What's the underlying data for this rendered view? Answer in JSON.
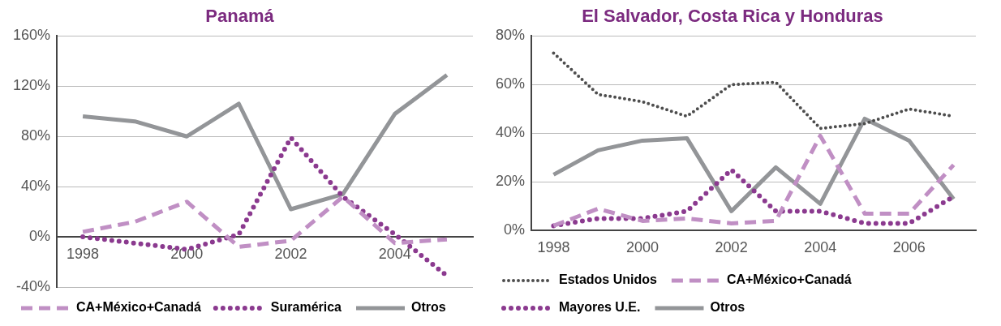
{
  "chart_data": [
    {
      "type": "line",
      "title": "Panamá",
      "categories": [
        "1998",
        null,
        "2000",
        null,
        "2002",
        null,
        "2004",
        null
      ],
      "series": [
        {
          "name": "CA+México+Canadá",
          "color": "#c08fc4",
          "line_style": "dashed",
          "values": [
            4,
            12,
            28,
            -8,
            -3,
            32,
            -5,
            -2
          ]
        },
        {
          "name": "Suramérica",
          "color": "#8b3a8f",
          "line_style": "dotted",
          "values": [
            0,
            -5,
            -10,
            2,
            79,
            32,
            2,
            -31
          ]
        },
        {
          "name": "Otros",
          "color": "#939598",
          "line_style": "solid",
          "values": [
            96,
            92,
            80,
            106,
            22,
            34,
            98,
            129
          ]
        }
      ],
      "ylim": [
        -40,
        160
      ],
      "yticks": [
        {
          "value": -40,
          "label": "-40%"
        },
        {
          "value": 0,
          "label": "0%"
        },
        {
          "value": 40,
          "label": "40%"
        },
        {
          "value": 80,
          "label": "80%"
        },
        {
          "value": 120,
          "label": "120%"
        },
        {
          "value": 160,
          "label": "160%"
        }
      ],
      "grid": "y",
      "legend": "bottom",
      "marker": "none"
    },
    {
      "type": "line",
      "title": "El Salvador, Costa Rica y Honduras",
      "categories": [
        "1998",
        null,
        "2000",
        null,
        "2002",
        null,
        "2004",
        null,
        "2006",
        null
      ],
      "series": [
        {
          "name": "Estados Unidos",
          "color": "#4d4d4d",
          "line_style": "dotted",
          "values": [
            73,
            56,
            53,
            47,
            60,
            61,
            42,
            44,
            50,
            47
          ]
        },
        {
          "name": "CA+México+Canadá",
          "color": "#c08fc4",
          "line_style": "dashed",
          "values": [
            2,
            9,
            4,
            5,
            3,
            4,
            39,
            7,
            7,
            27
          ]
        },
        {
          "name": "Mayores U.E.",
          "color": "#8b3a8f",
          "line_style": "dotted",
          "values": [
            2,
            5,
            5,
            8,
            25,
            8,
            8,
            3,
            3,
            14
          ]
        },
        {
          "name": "Otros",
          "color": "#939598",
          "line_style": "solid",
          "values": [
            23,
            33,
            37,
            38,
            8,
            26,
            11,
            46,
            37,
            13
          ]
        }
      ],
      "ylim": [
        0,
        80
      ],
      "yticks": [
        {
          "value": 0,
          "label": "0%"
        },
        {
          "value": 20,
          "label": "20%"
        },
        {
          "value": 40,
          "label": "40%"
        },
        {
          "value": 60,
          "label": "60%"
        },
        {
          "value": 80,
          "label": "80%"
        }
      ],
      "grid": "y",
      "legend": "bottom",
      "marker": "none"
    }
  ]
}
